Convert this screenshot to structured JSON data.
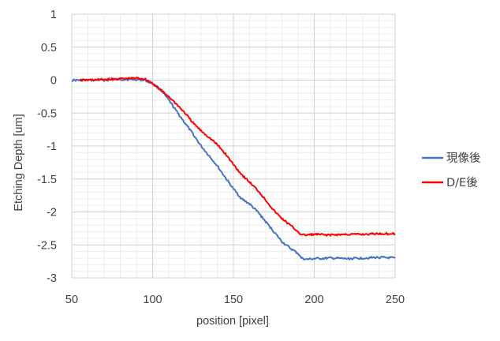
{
  "chart_data": {
    "type": "line",
    "xlabel": "position [pixel]",
    "ylabel": "Etching Depth [um]",
    "xlim": [
      50,
      250
    ],
    "ylim": [
      -3,
      1
    ],
    "x_ticks": [
      "50",
      "100",
      "150",
      "200",
      "250"
    ],
    "y_ticks": [
      "1",
      "0.5",
      "0",
      "-0.5",
      "-1",
      "-1.5",
      "-2",
      "-2.5",
      "-3"
    ],
    "grid": true,
    "minor_grid": true,
    "legend_position": "right",
    "series": [
      {
        "name": "現像後",
        "color": "#4472C4",
        "x": [
          50,
          60,
          70,
          80,
          90,
          95,
          100,
          105,
          110,
          115,
          120,
          125,
          130,
          135,
          140,
          145,
          150,
          155,
          160,
          165,
          170,
          175,
          180,
          185,
          190,
          192,
          195,
          200,
          210,
          220,
          230,
          240,
          250
        ],
        "y": [
          0.0,
          0.0,
          0.0,
          0.01,
          0.01,
          0.0,
          -0.05,
          -0.15,
          -0.3,
          -0.48,
          -0.65,
          -0.82,
          -1.0,
          -1.15,
          -1.3,
          -1.48,
          -1.65,
          -1.8,
          -1.88,
          -2.0,
          -2.15,
          -2.3,
          -2.45,
          -2.55,
          -2.63,
          -2.7,
          -2.72,
          -2.71,
          -2.7,
          -2.71,
          -2.7,
          -2.69,
          -2.7
        ]
      },
      {
        "name": "D/E後",
        "color": "#FF0000",
        "x": [
          55,
          60,
          70,
          80,
          90,
          95,
          100,
          105,
          110,
          115,
          120,
          125,
          130,
          135,
          140,
          145,
          150,
          155,
          160,
          165,
          170,
          175,
          180,
          185,
          190,
          192,
          195,
          200,
          210,
          220,
          230,
          240,
          250
        ],
        "y": [
          0.0,
          0.0,
          0.01,
          0.02,
          0.03,
          0.02,
          -0.05,
          -0.15,
          -0.25,
          -0.37,
          -0.5,
          -0.65,
          -0.77,
          -0.87,
          -0.98,
          -1.12,
          -1.28,
          -1.43,
          -1.55,
          -1.67,
          -1.82,
          -1.98,
          -2.1,
          -2.2,
          -2.3,
          -2.35,
          -2.35,
          -2.34,
          -2.35,
          -2.34,
          -2.34,
          -2.33,
          -2.33
        ]
      }
    ]
  }
}
